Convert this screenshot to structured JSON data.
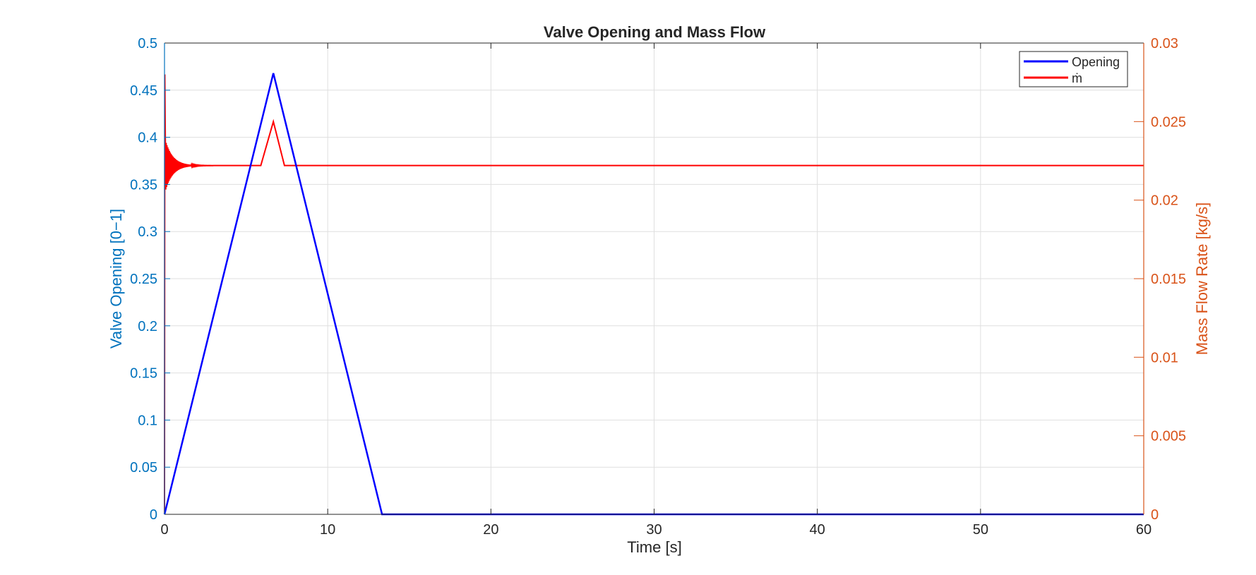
{
  "chart_data": {
    "type": "line",
    "title": "Valve Opening and Mass Flow",
    "xlabel": "Time [s]",
    "ylabel_left": "Valve Opening [0−1]",
    "ylabel_right": "Mass Flow Rate [kg/s]",
    "xlim": [
      0,
      60
    ],
    "ylim_left": [
      0,
      0.5
    ],
    "ylim_right": [
      0,
      0.03
    ],
    "x_ticks": [
      "0",
      "10",
      "20",
      "30",
      "40",
      "50",
      "60"
    ],
    "y_left_ticks": [
      "0",
      "0.05",
      "0.1",
      "0.15",
      "0.2",
      "0.25",
      "0.3",
      "0.35",
      "0.4",
      "0.45",
      "0.5"
    ],
    "y_right_ticks": [
      "0",
      "0.005",
      "0.01",
      "0.015",
      "0.02",
      "0.025",
      "0.03"
    ],
    "grid": true,
    "legend_position": "top-right",
    "series": [
      {
        "name": "Opening",
        "axis": "left",
        "color": "#0000FF",
        "x": [
          0,
          6.67,
          13.33,
          60
        ],
        "y": [
          0,
          0.468,
          0,
          0
        ]
      },
      {
        "name": "ṁ",
        "axis": "right",
        "color": "#FF0000",
        "x": [
          0,
          0.02,
          0.05,
          0.1,
          0.5,
          1,
          2,
          3,
          4,
          5,
          5.9,
          6,
          6.67,
          7.35,
          7.5,
          10,
          20,
          30,
          40,
          50,
          60
        ],
        "y": [
          0,
          0.028,
          0.0222,
          0.0222,
          0.0222,
          0.0222,
          0.0222,
          0.0222,
          0.0222,
          0.0222,
          0.0222,
          0.0222,
          0.025,
          0.0222,
          0.0222,
          0.0222,
          0.0222,
          0.0222,
          0.0222,
          0.0222,
          0.0222
        ],
        "oscillation": {
          "center": 0.0222,
          "initial_amplitude": 0.0018,
          "decay_until": 3
        }
      }
    ]
  }
}
